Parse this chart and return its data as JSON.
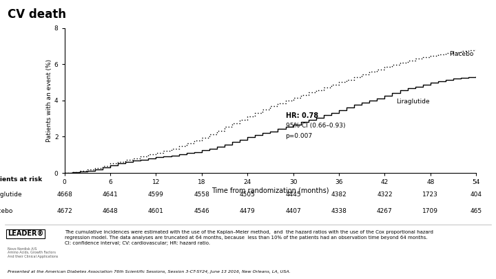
{
  "title": "CV death",
  "ylabel": "Patients with an event (%)",
  "xlabel": "Time from randomization (months)",
  "xlim": [
    0,
    54
  ],
  "ylim": [
    0,
    8
  ],
  "xticks": [
    0,
    6,
    12,
    18,
    24,
    30,
    36,
    42,
    48,
    54
  ],
  "yticks": [
    0,
    2,
    4,
    6,
    8
  ],
  "liraglutide_x": [
    0,
    1,
    2,
    3,
    4,
    5,
    6,
    7,
    8,
    9,
    10,
    11,
    12,
    13,
    14,
    15,
    16,
    17,
    18,
    19,
    20,
    21,
    22,
    23,
    24,
    25,
    26,
    27,
    28,
    29,
    30,
    31,
    32,
    33,
    34,
    35,
    36,
    37,
    38,
    39,
    40,
    41,
    42,
    43,
    44,
    45,
    46,
    47,
    48,
    49,
    50,
    51,
    52,
    53,
    54
  ],
  "liraglutide_y": [
    0,
    0.04,
    0.08,
    0.13,
    0.2,
    0.32,
    0.44,
    0.52,
    0.6,
    0.67,
    0.73,
    0.79,
    0.86,
    0.91,
    0.97,
    1.03,
    1.09,
    1.16,
    1.24,
    1.33,
    1.45,
    1.58,
    1.7,
    1.84,
    1.97,
    2.1,
    2.2,
    2.3,
    2.43,
    2.55,
    2.68,
    2.8,
    2.93,
    3.05,
    3.18,
    3.3,
    3.45,
    3.6,
    3.75,
    3.87,
    4.0,
    4.12,
    4.25,
    4.4,
    4.55,
    4.67,
    4.77,
    4.87,
    4.97,
    5.07,
    5.15,
    5.2,
    5.24,
    5.28,
    5.32
  ],
  "placebo_x": [
    0,
    1,
    2,
    3,
    4,
    5,
    6,
    7,
    8,
    9,
    10,
    11,
    12,
    13,
    14,
    15,
    16,
    17,
    18,
    19,
    20,
    21,
    22,
    23,
    24,
    25,
    26,
    27,
    28,
    29,
    30,
    31,
    32,
    33,
    34,
    35,
    36,
    37,
    38,
    39,
    40,
    41,
    42,
    43,
    44,
    45,
    46,
    47,
    48,
    49,
    50,
    51,
    52,
    53,
    54
  ],
  "placebo_y": [
    0,
    0.05,
    0.11,
    0.18,
    0.28,
    0.4,
    0.53,
    0.62,
    0.72,
    0.82,
    0.92,
    1.02,
    1.12,
    1.22,
    1.35,
    1.48,
    1.63,
    1.78,
    1.93,
    2.13,
    2.33,
    2.53,
    2.73,
    2.93,
    3.12,
    3.3,
    3.5,
    3.68,
    3.85,
    4.0,
    4.15,
    4.3,
    4.45,
    4.58,
    4.72,
    4.86,
    5.0,
    5.13,
    5.27,
    5.42,
    5.57,
    5.72,
    5.86,
    5.98,
    6.1,
    6.2,
    6.3,
    6.4,
    6.48,
    6.55,
    6.62,
    6.67,
    6.71,
    6.76,
    6.82
  ],
  "hr_text": "HR: 0.78",
  "ci_text": "95% CI (0.66–0.93)",
  "p_text": "p=0.007",
  "patients_at_risk_label": "Patients at risk",
  "liraglutide_label": "Liraglutide",
  "placebo_label": "Placebo",
  "liraglutide_counts": [
    "4668",
    "4641",
    "4599",
    "4558",
    "4505",
    "4445",
    "4382",
    "4322",
    "1723",
    "404"
  ],
  "placebo_counts": [
    "4672",
    "4648",
    "4601",
    "4546",
    "4479",
    "4407",
    "4338",
    "4267",
    "1709",
    "465"
  ],
  "footer_logo": "LEADER®",
  "footer_note": "The cumulative incidences were estimated with the use of the Kaplan–Meier method,  and  the hazard ratios with the use of the Cox proportional hazard\nregression model. The data analyses are truncated at 64 months, because  less than 10% of the patients had an observation time beyond 64 months.\nCI: confidence interval; CV: cardiovascular; HR: hazard ratio.",
  "footer_presented": "Presented at the American Diabetes Association 76th Scientific Sessions, Session 3-CT-SY24, June 13 2016, New Orleans, LA, USA.",
  "bg_color": "#ffffff"
}
